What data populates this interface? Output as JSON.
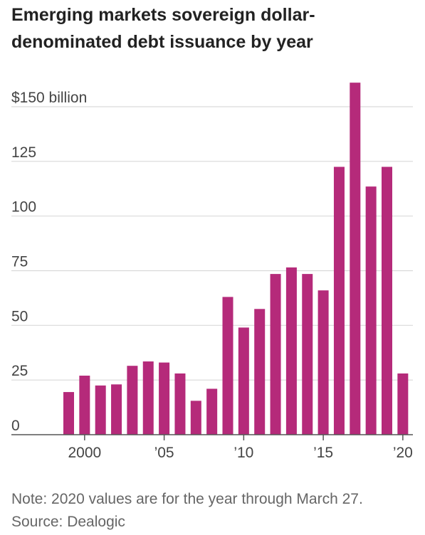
{
  "chart_data": {
    "type": "bar",
    "title": "Emerging markets sovereign dollar-denominated debt issuance by year",
    "x": [
      1999,
      2000,
      2001,
      2002,
      2003,
      2004,
      2005,
      2006,
      2007,
      2008,
      2009,
      2010,
      2011,
      2012,
      2013,
      2014,
      2015,
      2016,
      2017,
      2018,
      2019,
      2020
    ],
    "values": [
      19.5,
      27,
      22.5,
      23,
      31.5,
      33.5,
      33,
      28,
      15.5,
      21,
      63,
      49,
      57.5,
      73.5,
      76.5,
      73.5,
      66,
      122.5,
      161,
      113.5,
      122.5,
      28
    ],
    "unit": "billion",
    "ylim": [
      0,
      150
    ],
    "yticks": [
      {
        "value": 150,
        "label": "$150 billion"
      },
      {
        "value": 125,
        "label": "125"
      },
      {
        "value": 100,
        "label": "100"
      },
      {
        "value": 75,
        "label": "75"
      },
      {
        "value": 50,
        "label": "50"
      },
      {
        "value": 25,
        "label": "25"
      },
      {
        "value": 0,
        "label": "0"
      }
    ],
    "xticks": [
      {
        "value": 2000,
        "label": "2000"
      },
      {
        "value": 2005,
        "label": "’05"
      },
      {
        "value": 2010,
        "label": "’10"
      },
      {
        "value": 2015,
        "label": "’15"
      },
      {
        "value": 2020,
        "label": "’20"
      }
    ],
    "grid": true,
    "bar_color": "#b52a7a",
    "grid_color": "#d9d9d9",
    "axis_color": "#555555"
  },
  "note": "Note: 2020 values are for the year through March 27.",
  "source": "Source: Dealogic"
}
